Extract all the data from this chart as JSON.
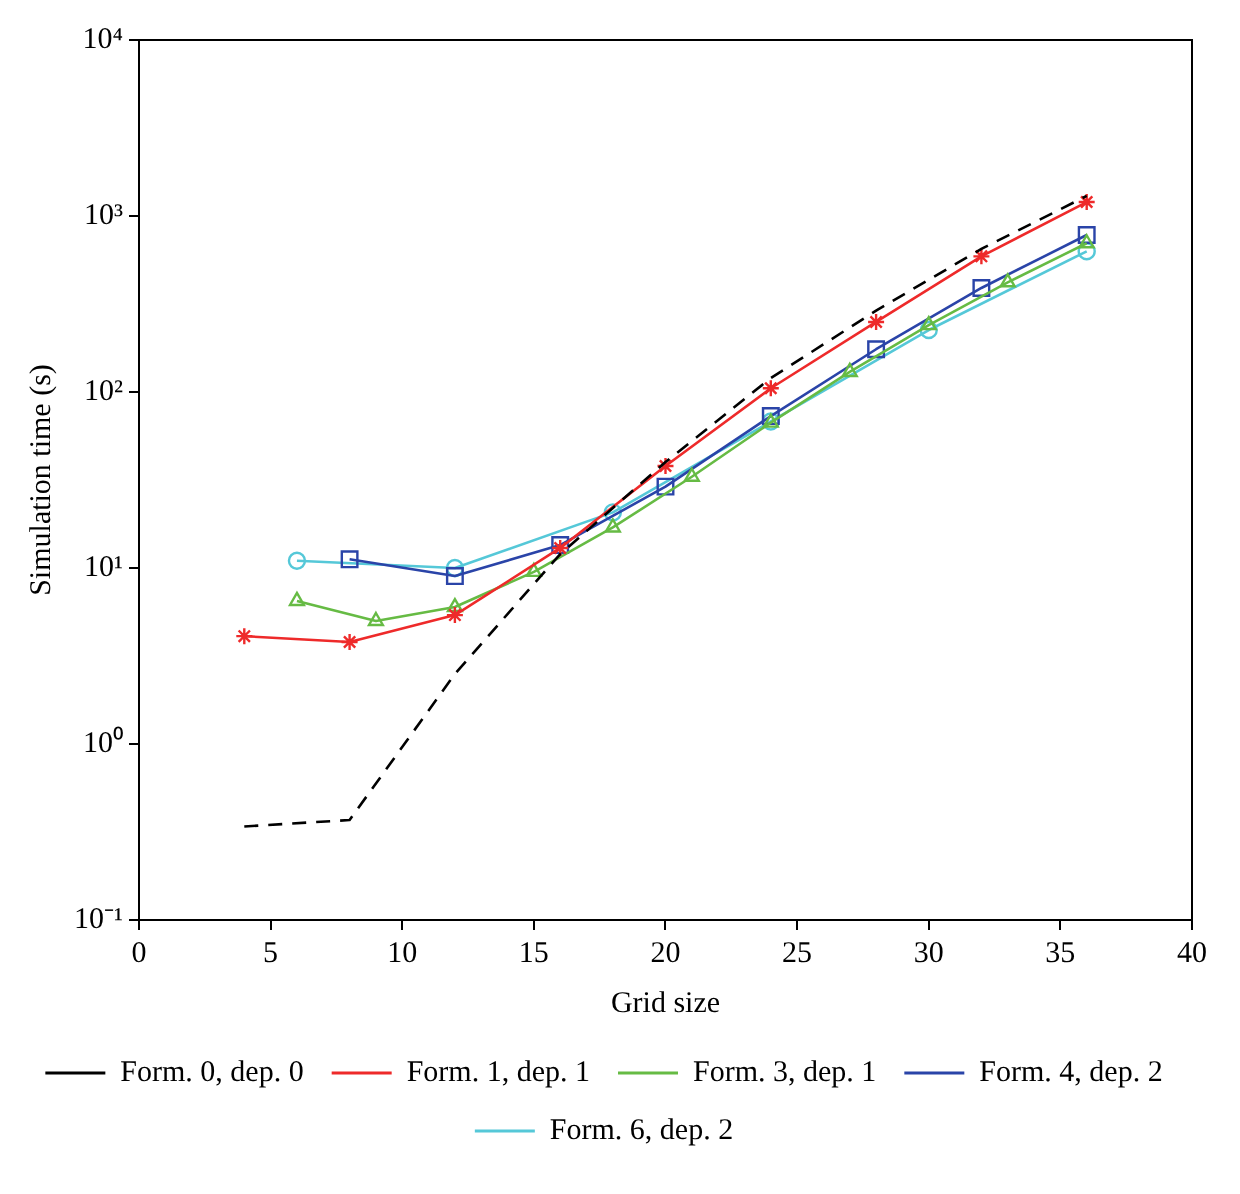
{
  "chart_data": {
    "type": "line",
    "xlabel": "Grid size",
    "ylabel": "Simulation time (s)",
    "log": "y",
    "grid": false,
    "legend": "bottom",
    "xlim": [
      0,
      40
    ],
    "xticks": [
      0,
      5,
      10,
      15,
      20,
      25,
      30,
      35,
      40
    ],
    "ylim": [
      0.1,
      10000
    ],
    "yticks": [
      {
        "value": 0.1,
        "label": "10⁻¹"
      },
      {
        "value": 1,
        "label": "10⁰"
      },
      {
        "value": 10,
        "label": "10¹"
      },
      {
        "value": 100,
        "label": "10²"
      },
      {
        "value": 1000,
        "label": "10³"
      },
      {
        "value": 10000,
        "label": "10⁴"
      }
    ],
    "series": [
      {
        "name": "Form. 0, dep. 0",
        "color": "#000000",
        "marker": "none",
        "line_style": "dashed",
        "x": [
          4,
          8,
          12,
          16,
          20,
          24,
          28,
          32,
          36
        ],
        "values": [
          0.34,
          0.37,
          2.5,
          12,
          40,
          120,
          290,
          650,
          1300
        ]
      },
      {
        "name": "Form. 1, dep. 1",
        "color": "#ee2a2a",
        "marker": "cross",
        "line_style": "solid",
        "x": [
          4,
          8,
          12,
          16,
          20,
          24,
          28,
          32,
          36
        ],
        "values": [
          4.1,
          3.8,
          5.4,
          13,
          38,
          105,
          250,
          590,
          1200
        ]
      },
      {
        "name": "Form. 3, dep. 1",
        "color": "#66bb44",
        "marker": "triangle",
        "line_style": "solid",
        "x": [
          6,
          9,
          12,
          15,
          18,
          21,
          24,
          27,
          30,
          33,
          36
        ],
        "values": [
          6.5,
          5,
          6,
          9.5,
          17,
          33,
          67,
          130,
          240,
          420,
          700
        ]
      },
      {
        "name": "Form. 4, dep. 2",
        "color": "#2a44a8",
        "marker": "square",
        "line_style": "solid",
        "x": [
          8,
          12,
          16,
          20,
          24,
          28,
          32,
          36
        ],
        "values": [
          11.2,
          9,
          13.5,
          29,
          73,
          175,
          390,
          780
        ]
      },
      {
        "name": "Form. 6, dep. 2",
        "color": "#55c8d8",
        "marker": "circle",
        "line_style": "solid",
        "x": [
          6,
          12,
          18,
          24,
          30,
          36
        ],
        "values": [
          11,
          10,
          20.7,
          68,
          225,
          630
        ]
      }
    ]
  }
}
